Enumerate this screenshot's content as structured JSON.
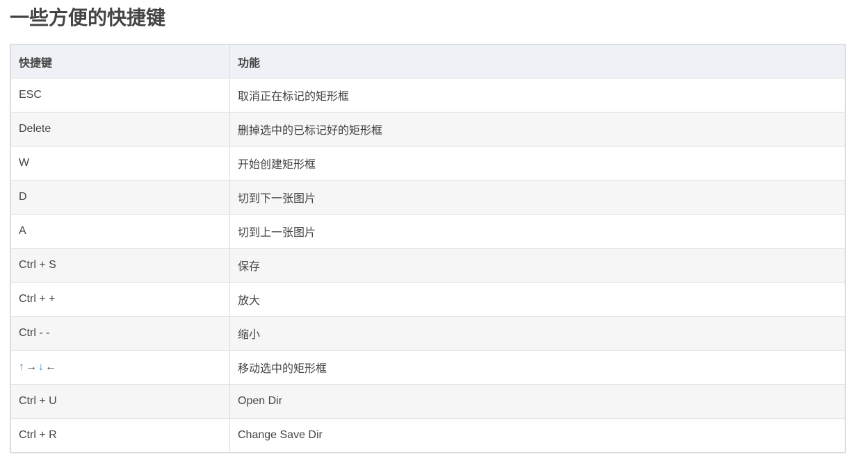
{
  "title": "一些方便的快捷键",
  "table": {
    "headers": [
      "快捷键",
      "功能"
    ],
    "rows": [
      {
        "key": "ESC",
        "action": "取消正在标记的矩形框"
      },
      {
        "key": "Delete",
        "action": "删掉选中的已标记好的矩形框"
      },
      {
        "key": "W",
        "action": "开始创建矩形框"
      },
      {
        "key": "D",
        "action": "切到下一张图片"
      },
      {
        "key": "A",
        "action": "切到上一张图片"
      },
      {
        "key": "Ctrl + S",
        "action": "保存"
      },
      {
        "key": "Ctrl + +",
        "action": "放大"
      },
      {
        "key": "Ctrl - -",
        "action": "缩小"
      },
      {
        "key": "↑→↓←",
        "action": "移动选中的矩形框"
      },
      {
        "key": "Ctrl + U",
        "action": "Open Dir"
      },
      {
        "key": "Ctrl + R",
        "action": "Change Save Dir"
      }
    ],
    "arrow_keys": [
      "↑",
      "→",
      "↓",
      "←"
    ],
    "arrow_accent_color": "#3a8ddb"
  }
}
